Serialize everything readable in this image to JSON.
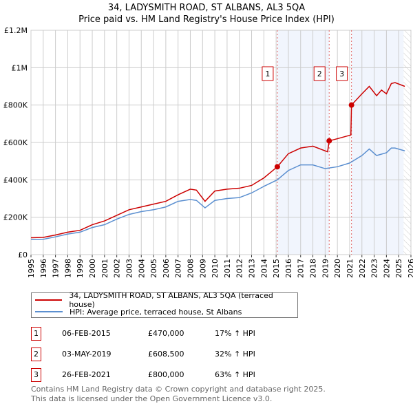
{
  "chart_data": {
    "type": "line",
    "title": "34, LADYSMITH ROAD, ST ALBANS, AL3 5QA",
    "subtitle": "Price paid vs. HM Land Registry's House Price Index (HPI)",
    "xlim": [
      1995,
      2026
    ],
    "ylim": [
      0,
      1200000
    ],
    "x_ticks": [
      "1995",
      "1996",
      "1997",
      "1998",
      "1999",
      "2000",
      "2001",
      "2002",
      "2003",
      "2004",
      "2005",
      "2006",
      "2007",
      "2008",
      "2009",
      "2010",
      "2011",
      "2012",
      "2013",
      "2014",
      "2015",
      "2016",
      "2017",
      "2018",
      "2019",
      "2020",
      "2021",
      "2022",
      "2023",
      "2024",
      "2025",
      "2026"
    ],
    "y_ticks": [
      {
        "v": 0,
        "label": "£0"
      },
      {
        "v": 200000,
        "label": "£200K"
      },
      {
        "v": 400000,
        "label": "£400K"
      },
      {
        "v": 600000,
        "label": "£600K"
      },
      {
        "v": 800000,
        "label": "£800K"
      },
      {
        "v": 1000000,
        "label": "£1M"
      },
      {
        "v": 1200000,
        "label": "£1.2M"
      }
    ],
    "grid": true,
    "series": [
      {
        "name": "34, LADYSMITH ROAD, ST ALBANS, AL3 5QA (terraced house)",
        "color": "#cc0000",
        "x": [
          1995,
          1996,
          1997,
          1998,
          1999,
          2000,
          2001,
          2002,
          2003,
          2004,
          2005,
          2006,
          2007,
          2008,
          2008.5,
          2009.2,
          2010,
          2011,
          2012,
          2013,
          2014,
          2015.1,
          2016,
          2017,
          2018,
          2019.2,
          2019.33,
          2020,
          2021.1,
          2021.15,
          2022,
          2022.6,
          2023.2,
          2023.6,
          2024,
          2024.4,
          2024.7,
          2025.5
        ],
        "values": [
          90000,
          92000,
          105000,
          120000,
          130000,
          160000,
          180000,
          210000,
          240000,
          255000,
          270000,
          285000,
          320000,
          350000,
          345000,
          285000,
          340000,
          350000,
          355000,
          370000,
          410000,
          470000,
          540000,
          570000,
          580000,
          550000,
          608500,
          620000,
          640000,
          800000,
          860000,
          900000,
          850000,
          880000,
          860000,
          915000,
          920000,
          900000
        ]
      },
      {
        "name": "HPI: Average price, terraced house, St Albans",
        "color": "#5b8fd0",
        "x": [
          1995,
          1996,
          1997,
          1998,
          1999,
          2000,
          2001,
          2002,
          2003,
          2004,
          2005,
          2006,
          2007,
          2008,
          2008.5,
          2009.2,
          2010,
          2011,
          2012,
          2013,
          2014,
          2015.1,
          2016,
          2017,
          2018,
          2019,
          2020,
          2021,
          2022,
          2022.6,
          2023.2,
          2024,
          2024.4,
          2024.7,
          2025.5
        ],
        "values": [
          80000,
          82000,
          95000,
          110000,
          120000,
          145000,
          160000,
          190000,
          215000,
          230000,
          240000,
          255000,
          285000,
          295000,
          290000,
          250000,
          290000,
          300000,
          305000,
          330000,
          365000,
          400000,
          450000,
          480000,
          480000,
          460000,
          470000,
          490000,
          530000,
          565000,
          530000,
          545000,
          570000,
          570000,
          555000
        ]
      }
    ],
    "sales": [
      {
        "n": "1",
        "x": 2015.1,
        "value": 470000,
        "date": "06-FEB-2015",
        "price": "£470,000",
        "delta": "17% ↑ HPI"
      },
      {
        "n": "2",
        "x": 2019.33,
        "value": 608500,
        "date": "03-MAY-2019",
        "price": "£608,500",
        "delta": "32% ↑ HPI"
      },
      {
        "n": "3",
        "x": 2021.15,
        "value": 800000,
        "date": "26-FEB-2021",
        "price": "£800,000",
        "delta": "63% ↑ HPI"
      }
    ],
    "data_end": 2025.4
  },
  "footer": [
    "Contains HM Land Registry data © Crown copyright and database right 2025.",
    "This data is licensed under the Open Government Licence v3.0."
  ]
}
